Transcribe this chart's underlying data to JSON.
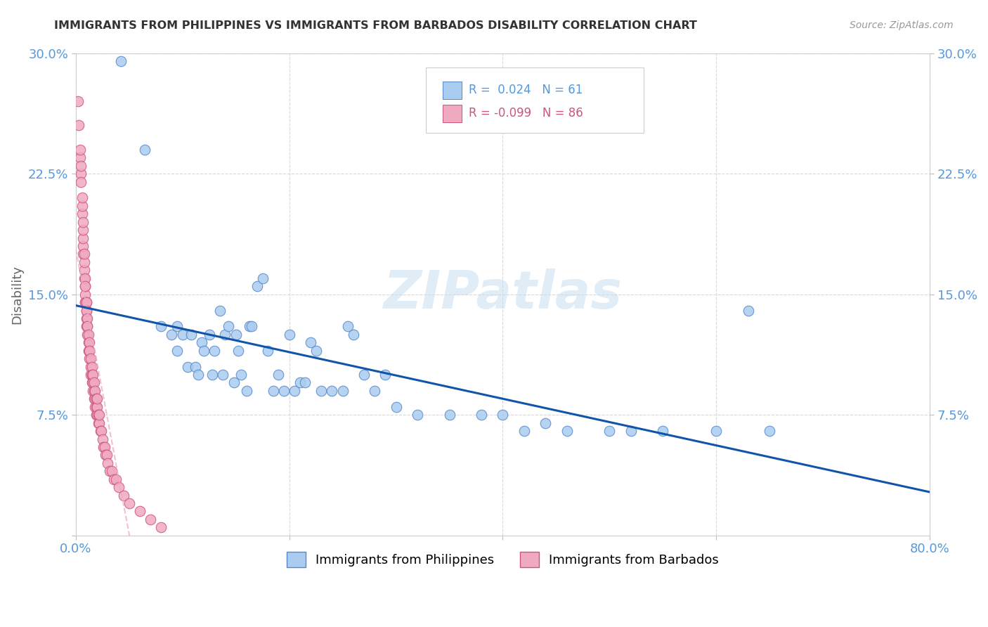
{
  "title": "IMMIGRANTS FROM PHILIPPINES VS IMMIGRANTS FROM BARBADOS DISABILITY CORRELATION CHART",
  "source": "Source: ZipAtlas.com",
  "ylabel": "Disability",
  "xlim": [
    0.0,
    0.8
  ],
  "ylim": [
    0.0,
    0.3
  ],
  "philippines_color": "#aaccf0",
  "barbados_color": "#f0aac0",
  "philippines_edge": "#5588cc",
  "barbados_edge": "#cc5580",
  "philippines_line_color": "#1155aa",
  "barbados_line_color": "#f0aac8",
  "background_color": "#ffffff",
  "grid_color": "#d8d8d8",
  "philippines_x": [
    0.042,
    0.065,
    0.08,
    0.09,
    0.095,
    0.095,
    0.1,
    0.105,
    0.108,
    0.112,
    0.115,
    0.118,
    0.12,
    0.125,
    0.128,
    0.13,
    0.135,
    0.138,
    0.14,
    0.143,
    0.148,
    0.15,
    0.152,
    0.155,
    0.16,
    0.163,
    0.165,
    0.17,
    0.175,
    0.18,
    0.185,
    0.19,
    0.195,
    0.2,
    0.205,
    0.21,
    0.215,
    0.22,
    0.225,
    0.23,
    0.24,
    0.25,
    0.255,
    0.26,
    0.27,
    0.28,
    0.29,
    0.3,
    0.32,
    0.35,
    0.38,
    0.4,
    0.42,
    0.44,
    0.46,
    0.5,
    0.52,
    0.55,
    0.6,
    0.63,
    0.65
  ],
  "philippines_y": [
    0.295,
    0.24,
    0.13,
    0.125,
    0.13,
    0.115,
    0.125,
    0.105,
    0.125,
    0.105,
    0.1,
    0.12,
    0.115,
    0.125,
    0.1,
    0.115,
    0.14,
    0.1,
    0.125,
    0.13,
    0.095,
    0.125,
    0.115,
    0.1,
    0.09,
    0.13,
    0.13,
    0.155,
    0.16,
    0.115,
    0.09,
    0.1,
    0.09,
    0.125,
    0.09,
    0.095,
    0.095,
    0.12,
    0.115,
    0.09,
    0.09,
    0.09,
    0.13,
    0.125,
    0.1,
    0.09,
    0.1,
    0.08,
    0.075,
    0.075,
    0.075,
    0.075,
    0.065,
    0.07,
    0.065,
    0.065,
    0.065,
    0.065,
    0.065,
    0.14,
    0.065
  ],
  "barbados_x": [
    0.002,
    0.003,
    0.004,
    0.004,
    0.005,
    0.005,
    0.005,
    0.006,
    0.006,
    0.006,
    0.007,
    0.007,
    0.007,
    0.007,
    0.007,
    0.008,
    0.008,
    0.008,
    0.008,
    0.009,
    0.009,
    0.009,
    0.009,
    0.009,
    0.009,
    0.01,
    0.01,
    0.01,
    0.01,
    0.01,
    0.01,
    0.011,
    0.011,
    0.011,
    0.011,
    0.012,
    0.012,
    0.012,
    0.013,
    0.013,
    0.013,
    0.013,
    0.014,
    0.014,
    0.014,
    0.015,
    0.015,
    0.015,
    0.015,
    0.016,
    0.016,
    0.016,
    0.017,
    0.017,
    0.017,
    0.018,
    0.018,
    0.018,
    0.019,
    0.019,
    0.019,
    0.02,
    0.02,
    0.02,
    0.021,
    0.021,
    0.022,
    0.022,
    0.023,
    0.024,
    0.025,
    0.026,
    0.027,
    0.028,
    0.029,
    0.03,
    0.032,
    0.034,
    0.036,
    0.038,
    0.04,
    0.045,
    0.05,
    0.06,
    0.07,
    0.08
  ],
  "barbados_y": [
    0.27,
    0.255,
    0.235,
    0.24,
    0.225,
    0.22,
    0.23,
    0.2,
    0.205,
    0.21,
    0.175,
    0.18,
    0.185,
    0.19,
    0.195,
    0.16,
    0.165,
    0.17,
    0.175,
    0.145,
    0.15,
    0.155,
    0.16,
    0.155,
    0.145,
    0.13,
    0.135,
    0.14,
    0.145,
    0.145,
    0.14,
    0.125,
    0.13,
    0.135,
    0.13,
    0.115,
    0.12,
    0.125,
    0.11,
    0.115,
    0.12,
    0.115,
    0.1,
    0.105,
    0.11,
    0.095,
    0.1,
    0.105,
    0.1,
    0.09,
    0.095,
    0.1,
    0.085,
    0.09,
    0.095,
    0.08,
    0.085,
    0.09,
    0.075,
    0.08,
    0.085,
    0.075,
    0.08,
    0.085,
    0.07,
    0.075,
    0.07,
    0.075,
    0.065,
    0.065,
    0.06,
    0.055,
    0.055,
    0.05,
    0.05,
    0.045,
    0.04,
    0.04,
    0.035,
    0.035,
    0.03,
    0.025,
    0.02,
    0.015,
    0.01,
    0.005
  ]
}
